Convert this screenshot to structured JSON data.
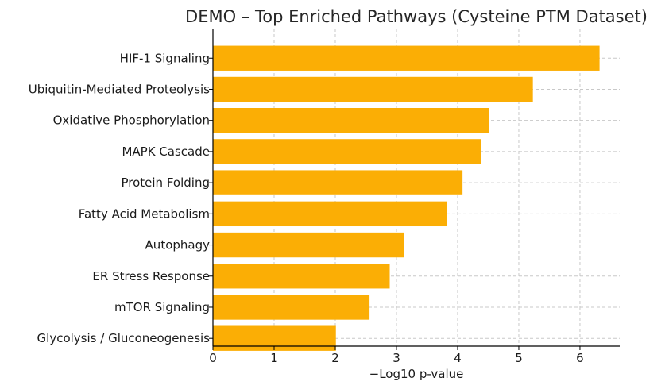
{
  "chart_data": {
    "type": "bar",
    "orientation": "horizontal",
    "title": "DEMO – Top Enriched Pathways (Cysteine PTM Dataset)",
    "xlabel": "−Log10 p-value",
    "ylabel": "",
    "categories": [
      "HIF-1 Signaling",
      "Ubiquitin-Mediated Proteolysis",
      "Oxidative Phosphorylation",
      "MAPK Cascade",
      "Protein Folding",
      "Fatty Acid Metabolism",
      "Autophagy",
      "ER Stress Response",
      "mTOR Signaling",
      "Glycolysis / Gluconeogenesis"
    ],
    "values": [
      6.32,
      5.23,
      4.51,
      4.39,
      4.08,
      3.82,
      3.12,
      2.89,
      2.56,
      2.01
    ],
    "xlim": [
      0,
      6.65
    ],
    "xticks": [
      0,
      1,
      2,
      3,
      4,
      5,
      6
    ],
    "grid": true,
    "bar_color": "#FBAE05"
  }
}
